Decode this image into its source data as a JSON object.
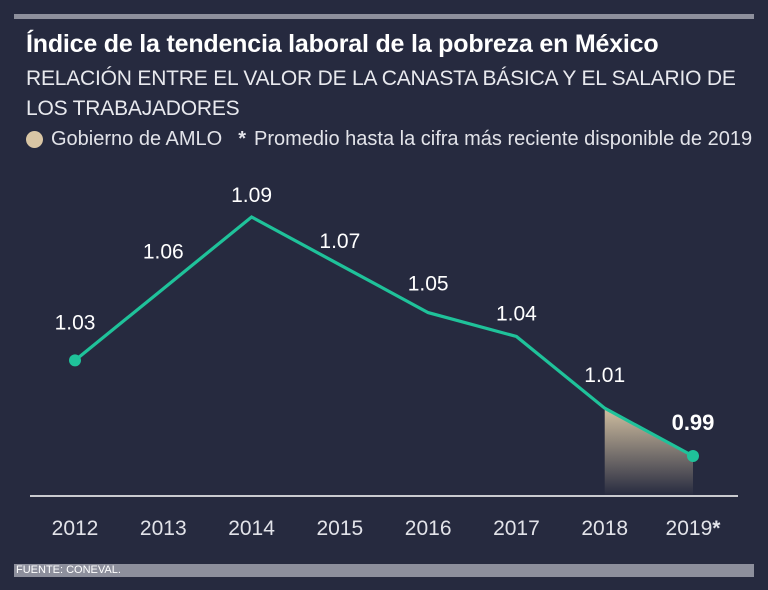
{
  "title": "Índice de la tendencia laboral de la pobreza en México",
  "subtitle": "RELACIÓN ENTRE EL VALOR DE LA CANASTA BÁSICA Y EL SALARIO DE LOS TRABAJADORES",
  "legend": {
    "amlo_label": "Gobierno de AMLO",
    "note_marker": "*",
    "note_text": "Promedio hasta la cifra más reciente disponible de 2019"
  },
  "footer": "FUENTE: CONEVAL.",
  "colors": {
    "background": "#262a3f",
    "line": "#1fc29a",
    "amlo_fill": "#d9c6a5",
    "rule": "#8d8f9c"
  },
  "chart_data": {
    "type": "line",
    "categories": [
      "2012",
      "2013",
      "2014",
      "2015",
      "2016",
      "2017",
      "2018",
      "2019"
    ],
    "category_suffix": [
      "",
      "",
      "",
      "",
      "",
      "",
      "",
      "*"
    ],
    "values": [
      1.03,
      1.06,
      1.09,
      1.07,
      1.05,
      1.04,
      1.01,
      0.99
    ],
    "value_labels": [
      "1.03",
      "1.06",
      "1.09",
      "1.07",
      "1.05",
      "1.04",
      "1.01",
      "0.99"
    ],
    "highlight_label_index": 7,
    "shaded_range": [
      "2018",
      "2019"
    ],
    "title": "",
    "xlabel": "",
    "ylabel": "",
    "grid": false
  }
}
